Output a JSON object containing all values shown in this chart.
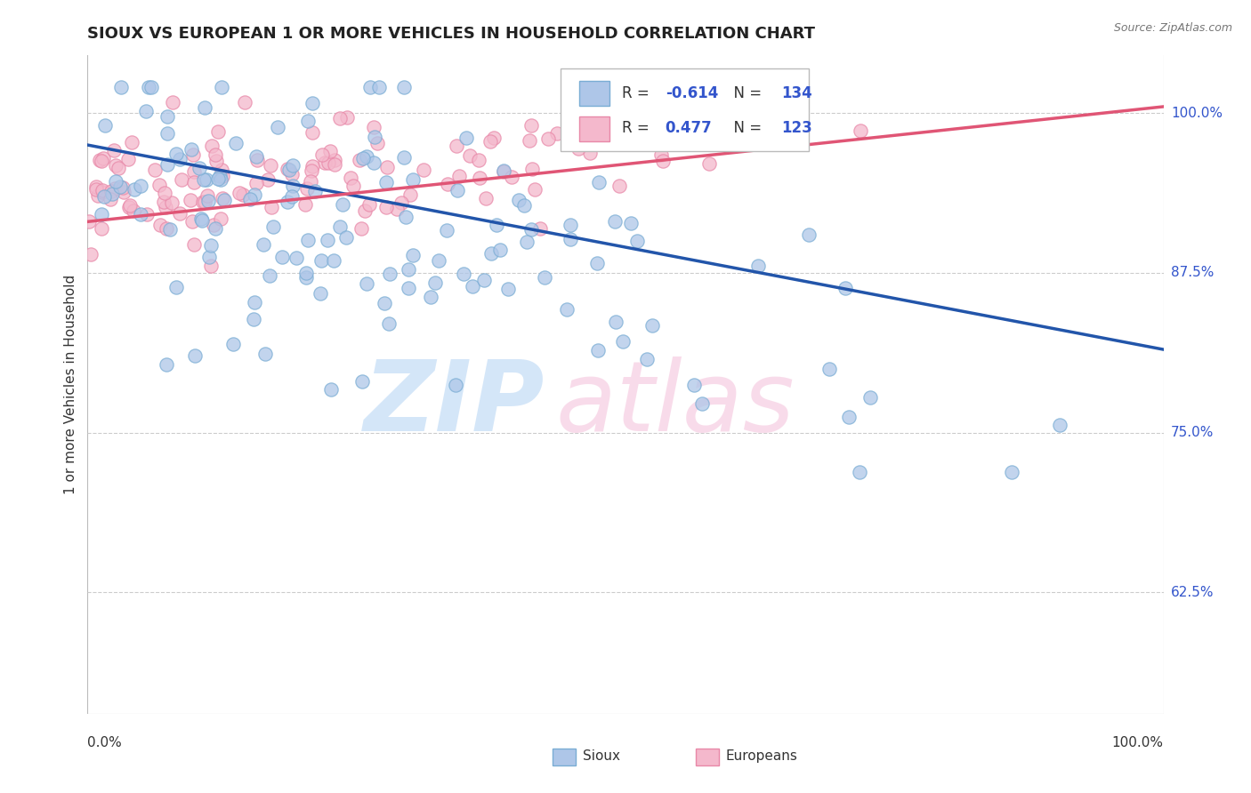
{
  "title": "SIOUX VS EUROPEAN 1 OR MORE VEHICLES IN HOUSEHOLD CORRELATION CHART",
  "source_text": "Source: ZipAtlas.com",
  "ylabel": "1 or more Vehicles in Household",
  "xlim": [
    0.0,
    1.0
  ],
  "ylim": [
    0.53,
    1.045
  ],
  "yticks": [
    0.625,
    0.75,
    0.875,
    1.0
  ],
  "ytick_labels": [
    "62.5%",
    "75.0%",
    "87.5%",
    "100.0%"
  ],
  "sioux_color": "#aec6e8",
  "european_color": "#f4b8cc",
  "sioux_edge": "#7aadd4",
  "european_edge": "#e888a8",
  "trend_blue": "#2255aa",
  "trend_pink": "#e05575",
  "R_sioux": -0.614,
  "N_sioux": 134,
  "R_european": 0.477,
  "N_european": 123,
  "legend_labels": [
    "Sioux",
    "Europeans"
  ],
  "watermark_blue": "#d0e4f8",
  "watermark_pink": "#f8d8e8",
  "sioux_trend_y0": 0.975,
  "sioux_trend_y1": 0.815,
  "european_trend_y0": 0.915,
  "european_trend_y1": 1.005,
  "title_fontsize": 13,
  "axis_label_fontsize": 11,
  "tick_fontsize": 11,
  "marker_size": 11,
  "background_color": "#ffffff",
  "grid_color": "#cccccc",
  "value_color": "#3355cc",
  "legend_text_color": "#333333"
}
